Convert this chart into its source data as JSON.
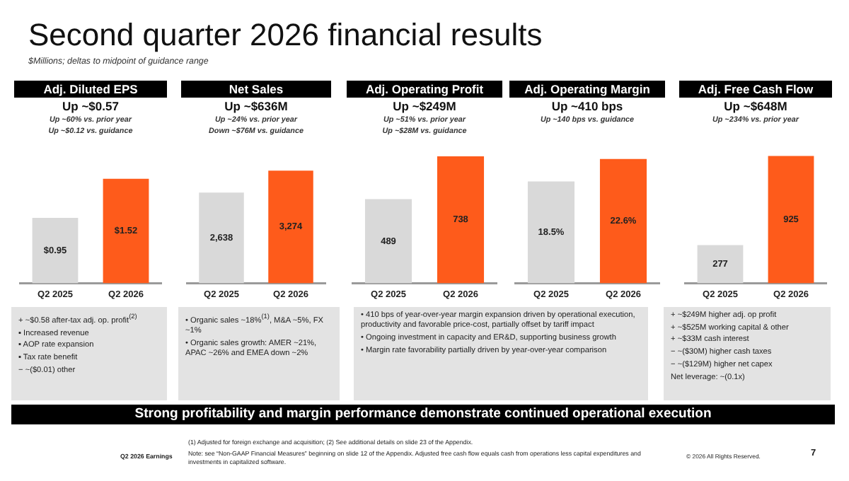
{
  "chart_data": [
    {
      "type": "bar",
      "title": "Adj. Diluted EPS",
      "subtitle": "Up ~$0.57\nUp ~60% vs. prior year\nUp ~$0.12 vs. guidance",
      "categories": [
        "Q2 2025",
        "Q2 2026"
      ],
      "values": [
        0.95,
        1.52
      ],
      "colors": [
        "#d9d9d9",
        "#fe5b1b"
      ],
      "value_labels": [
        "$0.95",
        "$1.52"
      ],
      "annotations": [
        "+ ~$0.58 after-tax adj. op. profit$^{(2)}$",
        "▪ Increased revenue",
        "▪ AOP rate expansion",
        "▪ Tax rate benefit",
        "− ~($0.01) other"
      ]
    },
    {
      "type": "bar",
      "title": "Net Sales",
      "subtitle": "Up ~$636M\nUp ~24% vs. prior year\nDown ~$76M vs. guidance",
      "categories": [
        "Q2 2025",
        "Q2 2026"
      ],
      "values": [
        2638,
        3274
      ],
      "colors": [
        "#d9d9d9",
        "#fe5b1b"
      ],
      "value_labels": [
        "2,638",
        "3,274"
      ],
      "annotations": [
        "• Organic sales ~18%$^{(1)}$, M&A ~5%, FX ~1%",
        "• Organic sales growth: AMER ~21%, APAC ~26% and EMEA down ~2%"
      ]
    },
    {
      "type": "bar",
      "title": "Adj. Operating Profit",
      "subtitle": "Up ~$249M\nUp ~51% vs. prior year\nUp ~$28M vs. guidance",
      "categories": [
        "Q2 2025",
        "Q2 2026"
      ],
      "values": [
        489,
        738
      ],
      "colors": [
        "#d9d9d9",
        "#fe5b1b"
      ],
      "value_labels": [
        "489",
        "738"
      ]
    },
    {
      "type": "bar",
      "title": "Adj. Operating Margin",
      "subtitle": "Up ~410 bps\nUp ~140 bps vs. guidance",
      "categories": [
        "Q2 2025",
        "Q2 2026"
      ],
      "values": [
        18.5,
        22.6
      ],
      "colors": [
        "#d9d9d9",
        "#fe5b1b"
      ],
      "value_labels": [
        "18.5%",
        "22.6%"
      ],
      "annotations": [
        "• 410 bps of year-over-year margin expansion driven by operational execution, productivity and favorable price-cost, partially offset by tariff impact",
        "• Ongoing investment in capacity and ER&D, supporting business growth",
        "• Margin rate favorability partially driven by year-over-year comparison"
      ]
    },
    {
      "type": "bar",
      "title": "Adj. Free Cash Flow",
      "subtitle": "Up ~$648M\nUp ~234% vs. prior year",
      "categories": [
        "Q2 2025",
        "Q2 2026"
      ],
      "values": [
        277,
        925
      ],
      "colors": [
        "#d9d9d9",
        "#fe5b1b"
      ],
      "value_labels": [
        "277",
        "925"
      ],
      "annotations": [
        "+ ~$249M higher adj. op profit",
        "+ ~$525M working capital & other",
        "+ ~$33M cash interest",
        "− ~($30M) higher cash taxes",
        "− ~($129M) higher net capex",
        "Net leverage: ~(0.1x)"
      ]
    },
    {
      "type": "other",
      "title": "Second quarter 2026 financial results",
      "subtitle": "$Millions; deltas to midpoint of guidance range",
      "annotations": [
        "Strong profitability and margin performance demonstrate continued operational execution",
        "Q2 2026 Earnings",
        "(1) Adjusted for foreign exchange and acquisition; (2) See additional details on slide 23 of the Appendix.",
        "Note: see “Non-GAAP Financial Measures” beginning on slide 12 of the Appendix. Adjusted free cash flow equals cash from operations less capital expenditures and investments in capitalized software.",
        "© 2026 All Rights Reserved.",
        "7"
      ]
    }
  ]
}
